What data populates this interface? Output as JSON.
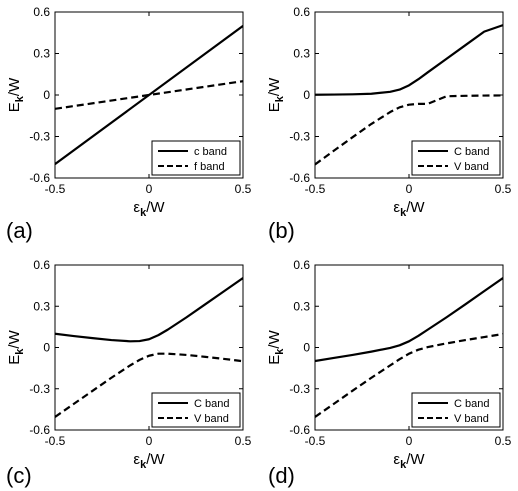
{
  "chart_data": [
    {
      "type": "line",
      "panel_label": "(a)",
      "ylabel": {
        "main": "E",
        "sub": "k",
        "rest": "/W"
      },
      "xlabel": {
        "main": "ε",
        "sub": "k",
        "rest": "/W"
      },
      "xlim": [
        -0.5,
        0.5
      ],
      "ylim": [
        -0.6,
        0.6
      ],
      "xticks": [
        -0.5,
        0,
        0.5
      ],
      "yticks": [
        -0.6,
        -0.3,
        0,
        0.3,
        0.6
      ],
      "xtick_labels": [
        "-0.5",
        "0",
        "0.5"
      ],
      "ytick_labels": [
        "-0.6",
        "-0.3",
        "0",
        "0.3",
        "0.6"
      ],
      "legend_position": "bottom-right",
      "series": [
        {
          "name": "c band",
          "style": "solid",
          "color": "#000000",
          "x": [
            -0.5,
            0.5
          ],
          "y": [
            -0.5,
            0.5
          ]
        },
        {
          "name": "f band",
          "style": "dashed",
          "color": "#000000",
          "x": [
            -0.5,
            0.5
          ],
          "y": [
            -0.1,
            0.1
          ]
        }
      ]
    },
    {
      "type": "line",
      "panel_label": "(b)",
      "ylabel": {
        "main": "E",
        "sub": "k",
        "rest": "/W"
      },
      "xlabel": {
        "main": "ε",
        "sub": "k",
        "rest": "/W"
      },
      "xlim": [
        -0.5,
        0.5
      ],
      "ylim": [
        -0.6,
        0.6
      ],
      "xticks": [
        -0.5,
        0,
        0.5
      ],
      "yticks": [
        -0.6,
        -0.3,
        0,
        0.3,
        0.6
      ],
      "xtick_labels": [
        "-0.5",
        "0",
        "0.5"
      ],
      "ytick_labels": [
        "-0.6",
        "-0.3",
        "0",
        "0.3",
        "0.6"
      ],
      "legend_position": "bottom-right",
      "series": [
        {
          "name": "C band",
          "style": "solid",
          "color": "#000000",
          "x": [
            -0.5,
            -0.4,
            -0.3,
            -0.2,
            -0.1,
            -0.05,
            0,
            0.05,
            0.1,
            0.2,
            0.3,
            0.4,
            0.5
          ],
          "y": [
            0.002,
            0.003,
            0.005,
            0.009,
            0.023,
            0.039,
            0.07,
            0.114,
            0.164,
            0.262,
            0.36,
            0.458,
            0.505
          ]
        },
        {
          "name": "V band",
          "style": "dashed",
          "color": "#000000",
          "x": [
            -0.5,
            -0.4,
            -0.3,
            -0.2,
            -0.1,
            -0.05,
            0,
            0.05,
            0.1,
            0.2,
            0.3,
            0.4,
            0.5
          ],
          "y": [
            -0.502,
            -0.403,
            -0.305,
            -0.209,
            -0.123,
            -0.089,
            -0.07,
            -0.064,
            -0.064,
            -0.009,
            -0.006,
            -0.004,
            -0.003
          ]
        }
      ]
    },
    {
      "type": "line",
      "panel_label": "(c)",
      "ylabel": {
        "main": "E",
        "sub": "k",
        "rest": "/W"
      },
      "xlabel": {
        "main": "ε",
        "sub": "k",
        "rest": "/W"
      },
      "xlim": [
        -0.5,
        0.5
      ],
      "ylim": [
        -0.6,
        0.6
      ],
      "xticks": [
        -0.5,
        0,
        0.5
      ],
      "yticks": [
        -0.6,
        -0.3,
        0,
        0.3,
        0.6
      ],
      "xtick_labels": [
        "-0.5",
        "0",
        "0.5"
      ],
      "ytick_labels": [
        "-0.6",
        "-0.3",
        "0",
        "0.3",
        "0.6"
      ],
      "legend_position": "bottom-right",
      "series": [
        {
          "name": "C band",
          "style": "solid",
          "color": "#000000",
          "x": [
            -0.5,
            -0.4,
            -0.3,
            -0.2,
            -0.1,
            -0.05,
            0,
            0.05,
            0.1,
            0.2,
            0.3,
            0.4,
            0.5
          ],
          "y": [
            0.1,
            0.083,
            0.068,
            0.054,
            0.045,
            0.047,
            0.06,
            0.09,
            0.13,
            0.22,
            0.315,
            0.41,
            0.505
          ]
        },
        {
          "name": "V band",
          "style": "dashed",
          "color": "#000000",
          "x": [
            -0.5,
            -0.4,
            -0.3,
            -0.2,
            -0.1,
            -0.05,
            0,
            0.05,
            0.1,
            0.2,
            0.3,
            0.4,
            0.5
          ],
          "y": [
            -0.505,
            -0.41,
            -0.315,
            -0.22,
            -0.13,
            -0.09,
            -0.06,
            -0.045,
            -0.045,
            -0.054,
            -0.068,
            -0.083,
            -0.1
          ]
        }
      ]
    },
    {
      "type": "line",
      "panel_label": "(d)",
      "ylabel": {
        "main": "E",
        "sub": "k",
        "rest": "/W"
      },
      "xlabel": {
        "main": "ε",
        "sub": "k",
        "rest": "/W"
      },
      "xlim": [
        -0.5,
        0.5
      ],
      "ylim": [
        -0.6,
        0.6
      ],
      "xticks": [
        -0.5,
        0,
        0.5
      ],
      "yticks": [
        -0.6,
        -0.3,
        0,
        0.3,
        0.6
      ],
      "xtick_labels": [
        "-0.5",
        "0",
        "0.5"
      ],
      "ytick_labels": [
        "-0.6",
        "-0.3",
        "0",
        "0.3",
        "0.6"
      ],
      "legend_position": "bottom-right",
      "series": [
        {
          "name": "C band",
          "style": "solid",
          "color": "#000000",
          "x": [
            -0.5,
            -0.4,
            -0.3,
            -0.2,
            -0.1,
            -0.05,
            0,
            0.05,
            0.1,
            0.2,
            0.3,
            0.4,
            0.5
          ],
          "y": [
            -0.098,
            -0.076,
            -0.054,
            -0.03,
            -0.003,
            0.016,
            0.045,
            0.085,
            0.13,
            0.22,
            0.314,
            0.41,
            0.505
          ]
        },
        {
          "name": "V band",
          "style": "dashed",
          "color": "#000000",
          "x": [
            -0.5,
            -0.4,
            -0.3,
            -0.2,
            -0.1,
            -0.05,
            0,
            0.05,
            0.1,
            0.2,
            0.3,
            0.4,
            0.5
          ],
          "y": [
            -0.505,
            -0.41,
            -0.314,
            -0.22,
            -0.13,
            -0.085,
            -0.045,
            -0.016,
            0.003,
            0.03,
            0.054,
            0.076,
            0.098
          ]
        }
      ]
    }
  ]
}
